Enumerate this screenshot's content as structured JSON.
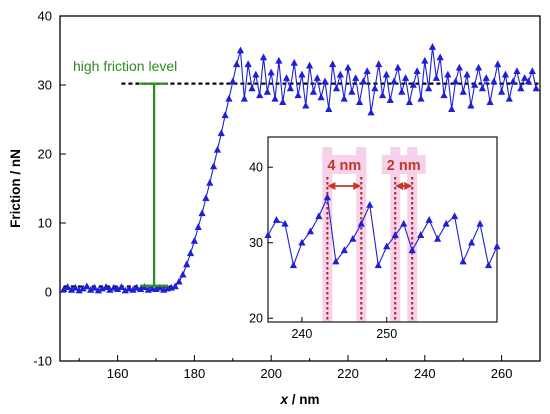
{
  "chart_data": [
    {
      "type": "line",
      "title": "",
      "xlabel": "x / nm",
      "xlabel_italic_part": "x",
      "xlabel_rest": " / nm",
      "ylabel": "Friction / nN",
      "xlim": [
        145,
        270
      ],
      "ylim": [
        -10,
        40
      ],
      "xticks": [
        160,
        180,
        200,
        220,
        240,
        260
      ],
      "yticks": [
        -10,
        0,
        10,
        20,
        30,
        40
      ],
      "grid": false,
      "marker": "triangle",
      "color": "#1f1fd6",
      "series": [
        {
          "x": [
            146,
            147,
            148,
            149,
            150,
            151,
            152,
            153,
            154,
            155,
            156,
            157,
            158,
            159,
            160,
            161,
            162,
            163,
            164,
            165,
            166,
            167,
            168,
            169,
            170,
            171,
            172,
            173,
            174,
            175,
            176,
            177,
            178,
            179,
            180,
            181,
            182,
            183,
            184,
            185,
            186,
            187,
            188,
            189,
            190,
            191,
            192,
            193,
            194,
            195,
            196,
            197,
            198,
            199,
            200,
            201,
            202,
            203,
            204,
            205,
            206,
            207,
            208,
            209,
            210,
            211,
            212,
            213,
            214,
            215,
            216,
            217,
            218,
            219,
            220,
            221,
            222,
            223,
            224,
            225,
            226,
            227,
            228,
            229,
            230,
            231,
            232,
            233,
            234,
            235,
            236,
            237,
            238,
            239,
            240,
            241,
            242,
            243,
            244,
            245,
            246,
            247,
            248,
            249,
            250,
            251,
            252,
            253,
            254,
            255,
            256,
            257,
            258,
            259,
            260,
            261,
            262,
            263,
            264,
            265,
            266,
            267,
            268,
            269
          ],
          "y": [
            0.4,
            0.7,
            0.3,
            0.6,
            0.2,
            0.5,
            0.8,
            0.3,
            0.6,
            0.2,
            0.5,
            0.7,
            0.3,
            0.6,
            0.4,
            0.7,
            0.2,
            0.5,
            0.3,
            0.6,
            0.4,
            0.7,
            0.3,
            0.5,
            0.4,
            0.6,
            0.3,
            0.5,
            0.6,
            0.8,
            1.5,
            2.5,
            4.0,
            5.6,
            7.4,
            9.4,
            11.4,
            13.6,
            15.8,
            18.2,
            20.6,
            23.0,
            25.6,
            28.0,
            30.5,
            33.0,
            35.0,
            28.0,
            33.0,
            29.5,
            31.5,
            28.5,
            34.0,
            29.0,
            31.8,
            28.0,
            33.5,
            27.5,
            31.0,
            29.5,
            33.2,
            28.5,
            31.5,
            27.0,
            32.8,
            29.0,
            31.0,
            28.2,
            30.5,
            26.5,
            33.0,
            29.5,
            31.5,
            28.0,
            32.5,
            29.0,
            31.0,
            27.5,
            30.5,
            32.0,
            26.0,
            29.5,
            33.0,
            28.5,
            31.5,
            27.8,
            30.5,
            32.5,
            29.0,
            31.0,
            27.5,
            30.0,
            32.0,
            28.0,
            33.5,
            29.5,
            35.5,
            31.0,
            34.0,
            28.5,
            31.5,
            26.5,
            30.5,
            32.5,
            29.0,
            31.5,
            27.0,
            30.0,
            32.5,
            29.5,
            31.0,
            27.5,
            30.5,
            33.0,
            29.0,
            31.5,
            28.0,
            30.5,
            32.0,
            29.5,
            31.0,
            30.5,
            32.0,
            29.5
          ]
        }
      ],
      "annotations": {
        "high_friction_label": "high friction level"
      }
    },
    {
      "type": "line",
      "title": "",
      "xlim": [
        236,
        263
      ],
      "ylim": [
        19.5,
        44
      ],
      "xticks": [
        240,
        250
      ],
      "yticks": [
        20,
        30,
        40
      ],
      "marker": "triangle",
      "color": "#1f1fd6",
      "series": [
        {
          "x": [
            236,
            237,
            238,
            239,
            240,
            241,
            242,
            243,
            244,
            245,
            246,
            247,
            248,
            249,
            250,
            251,
            252,
            253,
            254,
            255,
            256,
            257,
            258,
            259,
            260,
            261,
            262,
            263
          ],
          "y": [
            31,
            33,
            32.5,
            27,
            30,
            31.5,
            33.5,
            36,
            27.5,
            29,
            30.5,
            32.5,
            35,
            27,
            29.5,
            31,
            32.5,
            29,
            31,
            33,
            30.5,
            32.5,
            33.5,
            27.5,
            30,
            32.5,
            27,
            29.5
          ]
        }
      ],
      "annotations": {
        "span_4nm_label": "4 nm",
        "span_2nm_label": "2 nm",
        "span_4nm": [
          243,
          247
        ],
        "span_2nm": [
          251,
          253
        ]
      }
    }
  ]
}
